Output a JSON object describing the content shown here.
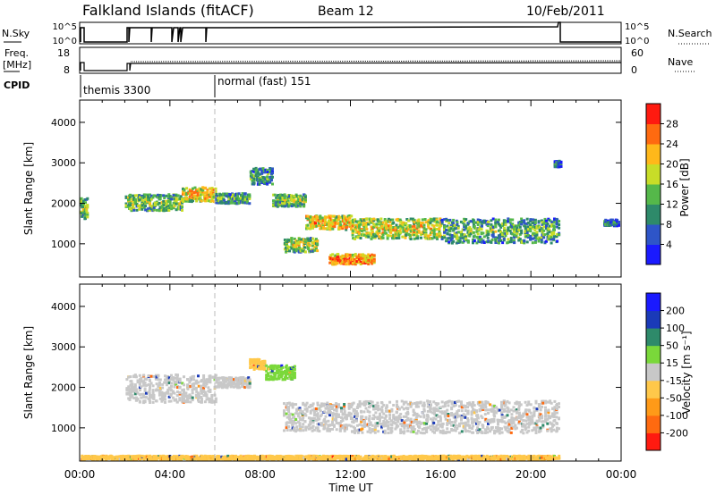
{
  "header": {
    "title": "Falkland Islands (fitACF)",
    "beam": "Beam 12",
    "date": "10/Feb/2011"
  },
  "status_panels": {
    "nsky_label": "N.Sky",
    "nsky_ticks": [
      "10^5",
      "10^0"
    ],
    "nsearch_label": "N.Search",
    "nsearch_ticks": [
      "10^5",
      "10^0"
    ],
    "freq_label_line1": "Freq.",
    "freq_label_line2": "[MHz]",
    "freq_ticks": [
      "18",
      "8"
    ],
    "nave_label": "Nave",
    "nave_ticks": [
      "60",
      "0"
    ],
    "cpid_label": "CPID",
    "cpid_segments": [
      {
        "label": "themis 3300",
        "start_hour": 0.0
      },
      {
        "label": "normal (fast) 151",
        "start_hour": 6.0
      }
    ]
  },
  "chart_data": [
    {
      "type": "heatmap",
      "title": "",
      "quantity": "Power",
      "colorbar_label": "Power [dB]",
      "colorbar_ticks": [
        "4",
        "8",
        "12",
        "16",
        "20",
        "24",
        "28"
      ],
      "colorbar_colors": [
        "#1a1aff",
        "#2e55c8",
        "#2e8a6a",
        "#55b84a",
        "#c8dd28",
        "#ffb81a",
        "#ff6a10",
        "#ff1a10"
      ],
      "xlabel": "",
      "ylabel": "Slant Range [km]",
      "xlim": [
        0,
        24
      ],
      "ylim": [
        180,
        4550
      ],
      "yticks": [
        "1000",
        "2000",
        "3000",
        "4000"
      ],
      "xticks": [
        "00:00",
        "04:00",
        "08:00",
        "12:00",
        "16:00",
        "20:00",
        "00:00"
      ],
      "bands": [
        {
          "t0": 0.0,
          "t1": 0.3,
          "center_km": 1900,
          "width_km": 500,
          "power_db": 16
        },
        {
          "t0": 2.0,
          "t1": 4.5,
          "center_km": 2050,
          "width_km": 400,
          "power_db": 16
        },
        {
          "t0": 4.5,
          "t1": 6.0,
          "center_km": 2250,
          "width_km": 350,
          "power_db": 22
        },
        {
          "t0": 6.0,
          "t1": 7.5,
          "center_km": 2150,
          "width_km": 250,
          "power_db": 14
        },
        {
          "t0": 7.5,
          "t1": 8.5,
          "center_km": 2700,
          "width_km": 400,
          "power_db": 12
        },
        {
          "t0": 8.5,
          "t1": 10.0,
          "center_km": 2100,
          "width_km": 300,
          "power_db": 16
        },
        {
          "t0": 9.0,
          "t1": 10.5,
          "center_km": 1000,
          "width_km": 350,
          "power_db": 18
        },
        {
          "t0": 10.0,
          "t1": 12.0,
          "center_km": 1550,
          "width_km": 350,
          "power_db": 22
        },
        {
          "t0": 11.0,
          "t1": 13.0,
          "center_km": 650,
          "width_km": 250,
          "power_db": 26
        },
        {
          "t0": 12.0,
          "t1": 16.0,
          "center_km": 1400,
          "width_km": 500,
          "power_db": 20
        },
        {
          "t0": 16.0,
          "t1": 21.2,
          "center_km": 1350,
          "width_km": 600,
          "power_db": 14
        },
        {
          "t0": 21.0,
          "t1": 21.3,
          "center_km": 3000,
          "width_km": 150,
          "power_db": 10
        },
        {
          "t0": 23.2,
          "t1": 23.9,
          "center_km": 1550,
          "width_km": 150,
          "power_db": 10
        }
      ]
    },
    {
      "type": "heatmap",
      "title": "",
      "quantity": "Velocity",
      "colorbar_label": "Velocity [m s⁻¹]",
      "colorbar_ticks": [
        "-200",
        "-100",
        "-50",
        "-15",
        "15",
        "50",
        "100",
        "200"
      ],
      "colorbar_colors": [
        "#ff1a10",
        "#ff6a10",
        "#ff9a18",
        "#ffc84a",
        "#c8c8c8",
        "#7ad83a",
        "#2e8a6a",
        "#1a3ab8",
        "#1a1aff"
      ],
      "xlabel": "Time UT",
      "ylabel": "Slant Range [km]",
      "xlim": [
        0,
        24
      ],
      "ylim": [
        180,
        4550
      ],
      "yticks": [
        "1000",
        "2000",
        "3000",
        "4000"
      ],
      "xticks": [
        "00:00",
        "04:00",
        "08:00",
        "12:00",
        "16:00",
        "20:00",
        "00:00"
      ],
      "bands": [
        {
          "t0": 2.0,
          "t1": 6.0,
          "center_km": 2000,
          "width_km": 700,
          "velocity": 0
        },
        {
          "t0": 6.0,
          "t1": 7.5,
          "center_km": 2150,
          "width_km": 250,
          "velocity": 0
        },
        {
          "t0": 7.5,
          "t1": 8.2,
          "center_km": 2600,
          "width_km": 250,
          "velocity": -30
        },
        {
          "t0": 8.2,
          "t1": 9.5,
          "center_km": 2400,
          "width_km": 350,
          "velocity": 30
        },
        {
          "t0": 9.0,
          "t1": 12.0,
          "center_km": 1300,
          "width_km": 700,
          "velocity": 0
        },
        {
          "t0": 12.0,
          "t1": 21.2,
          "center_km": 1300,
          "width_km": 800,
          "velocity": 0
        },
        {
          "t0": 0.0,
          "t1": 21.2,
          "center_km": 280,
          "width_km": 120,
          "velocity": -40
        }
      ]
    }
  ]
}
